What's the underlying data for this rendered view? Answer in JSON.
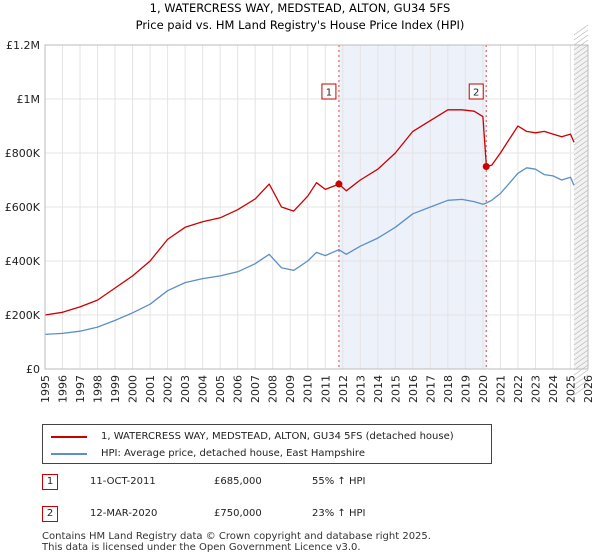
{
  "chart_data": {
    "type": "line",
    "title": "1, WATERCRESS WAY, MEDSTEAD, ALTON, GU34 5FS",
    "subtitle": "Price paid vs. HM Land Registry's House Price Index (HPI)",
    "xlim": [
      1995,
      2026
    ],
    "ylim": [
      0,
      1200000
    ],
    "y_ticks": [
      {
        "value": 0,
        "label": "£0"
      },
      {
        "value": 200000,
        "label": "£200K"
      },
      {
        "value": 400000,
        "label": "£400K"
      },
      {
        "value": 600000,
        "label": "£600K"
      },
      {
        "value": 800000,
        "label": "£800K"
      },
      {
        "value": 1000000,
        "label": "£1M"
      },
      {
        "value": 1200000,
        "label": "£1.2M"
      }
    ],
    "x_ticks": [
      "1995",
      "1996",
      "1997",
      "1998",
      "1999",
      "2000",
      "2001",
      "2002",
      "2003",
      "2004",
      "2005",
      "2006",
      "2007",
      "2008",
      "2009",
      "2010",
      "2011",
      "2012",
      "2013",
      "2014",
      "2015",
      "2016",
      "2017",
      "2018",
      "2019",
      "2020",
      "2021",
      "2022",
      "2023",
      "2024",
      "2025",
      "2026"
    ],
    "series": [
      {
        "name": "1, WATERCRESS WAY, MEDSTEAD, ALTON, GU34 5FS (detached house)",
        "color": "#cc0000",
        "x": [
          1995.0,
          1996.0,
          1997.0,
          1998.0,
          1999.0,
          2000.0,
          2001.0,
          2002.0,
          2003.0,
          2004.0,
          2005.0,
          2006.0,
          2007.0,
          2007.8,
          2008.5,
          2009.2,
          2010.0,
          2010.5,
          2011.0,
          2011.78,
          2012.2,
          2013.0,
          2014.0,
          2015.0,
          2016.0,
          2017.0,
          2018.0,
          2018.8,
          2019.5,
          2020.0,
          2020.2,
          2020.5,
          2021.0,
          2022.0,
          2022.5,
          2023.0,
          2023.5,
          2024.0,
          2024.5,
          2025.0,
          2025.2
        ],
        "values": [
          200000,
          210000,
          230000,
          255000,
          300000,
          345000,
          400000,
          480000,
          525000,
          545000,
          560000,
          590000,
          630000,
          685000,
          600000,
          585000,
          640000,
          690000,
          665000,
          685000,
          660000,
          700000,
          740000,
          800000,
          880000,
          920000,
          960000,
          960000,
          955000,
          935000,
          750000,
          755000,
          800000,
          900000,
          880000,
          875000,
          880000,
          870000,
          860000,
          870000,
          840000
        ]
      },
      {
        "name": "HPI: Average price, detached house, East Hampshire",
        "color": "#5b8fc9",
        "x": [
          1995.0,
          1996.0,
          1997.0,
          1998.0,
          1999.0,
          2000.0,
          2001.0,
          2002.0,
          2003.0,
          2004.0,
          2005.0,
          2006.0,
          2007.0,
          2007.8,
          2008.5,
          2009.2,
          2010.0,
          2010.5,
          2011.0,
          2011.78,
          2012.2,
          2013.0,
          2014.0,
          2015.0,
          2016.0,
          2017.0,
          2018.0,
          2018.8,
          2019.5,
          2020.0,
          2020.2,
          2020.5,
          2021.0,
          2022.0,
          2022.5,
          2023.0,
          2023.5,
          2024.0,
          2024.5,
          2025.0,
          2025.2
        ],
        "values": [
          128000,
          132000,
          140000,
          155000,
          180000,
          208000,
          240000,
          290000,
          320000,
          335000,
          345000,
          360000,
          390000,
          425000,
          375000,
          365000,
          400000,
          432000,
          420000,
          442000,
          425000,
          455000,
          485000,
          525000,
          575000,
          600000,
          625000,
          628000,
          620000,
          610000,
          615000,
          625000,
          650000,
          725000,
          745000,
          740000,
          720000,
          715000,
          700000,
          710000,
          680000
        ]
      }
    ],
    "sales": [
      {
        "label": "1",
        "x": 2011.78,
        "value": 685000
      },
      {
        "label": "2",
        "x": 2020.19,
        "value": 750000
      }
    ]
  },
  "legend": {
    "property": "1, WATERCRESS WAY, MEDSTEAD, ALTON, GU34 5FS (detached house)",
    "hpi": "HPI: Average price, detached house, East Hampshire"
  },
  "sales_table": [
    {
      "label": "1",
      "date": "11-OCT-2011",
      "price": "£685,000",
      "hpi": "55% ↑ HPI"
    },
    {
      "label": "2",
      "date": "12-MAR-2020",
      "price": "£750,000",
      "hpi": "23% ↑ HPI"
    }
  ],
  "footer": {
    "line1": "Contains HM Land Registry data © Crown copyright and database right 2025.",
    "line2": "This data is licensed under the Open Government Licence v3.0."
  },
  "colors": {
    "property": "#cc0000",
    "hpi": "#5b8fc9",
    "grid": "#e4e4e4",
    "plot_bg": "#ffffff",
    "sale_band": "#dde6f5"
  }
}
